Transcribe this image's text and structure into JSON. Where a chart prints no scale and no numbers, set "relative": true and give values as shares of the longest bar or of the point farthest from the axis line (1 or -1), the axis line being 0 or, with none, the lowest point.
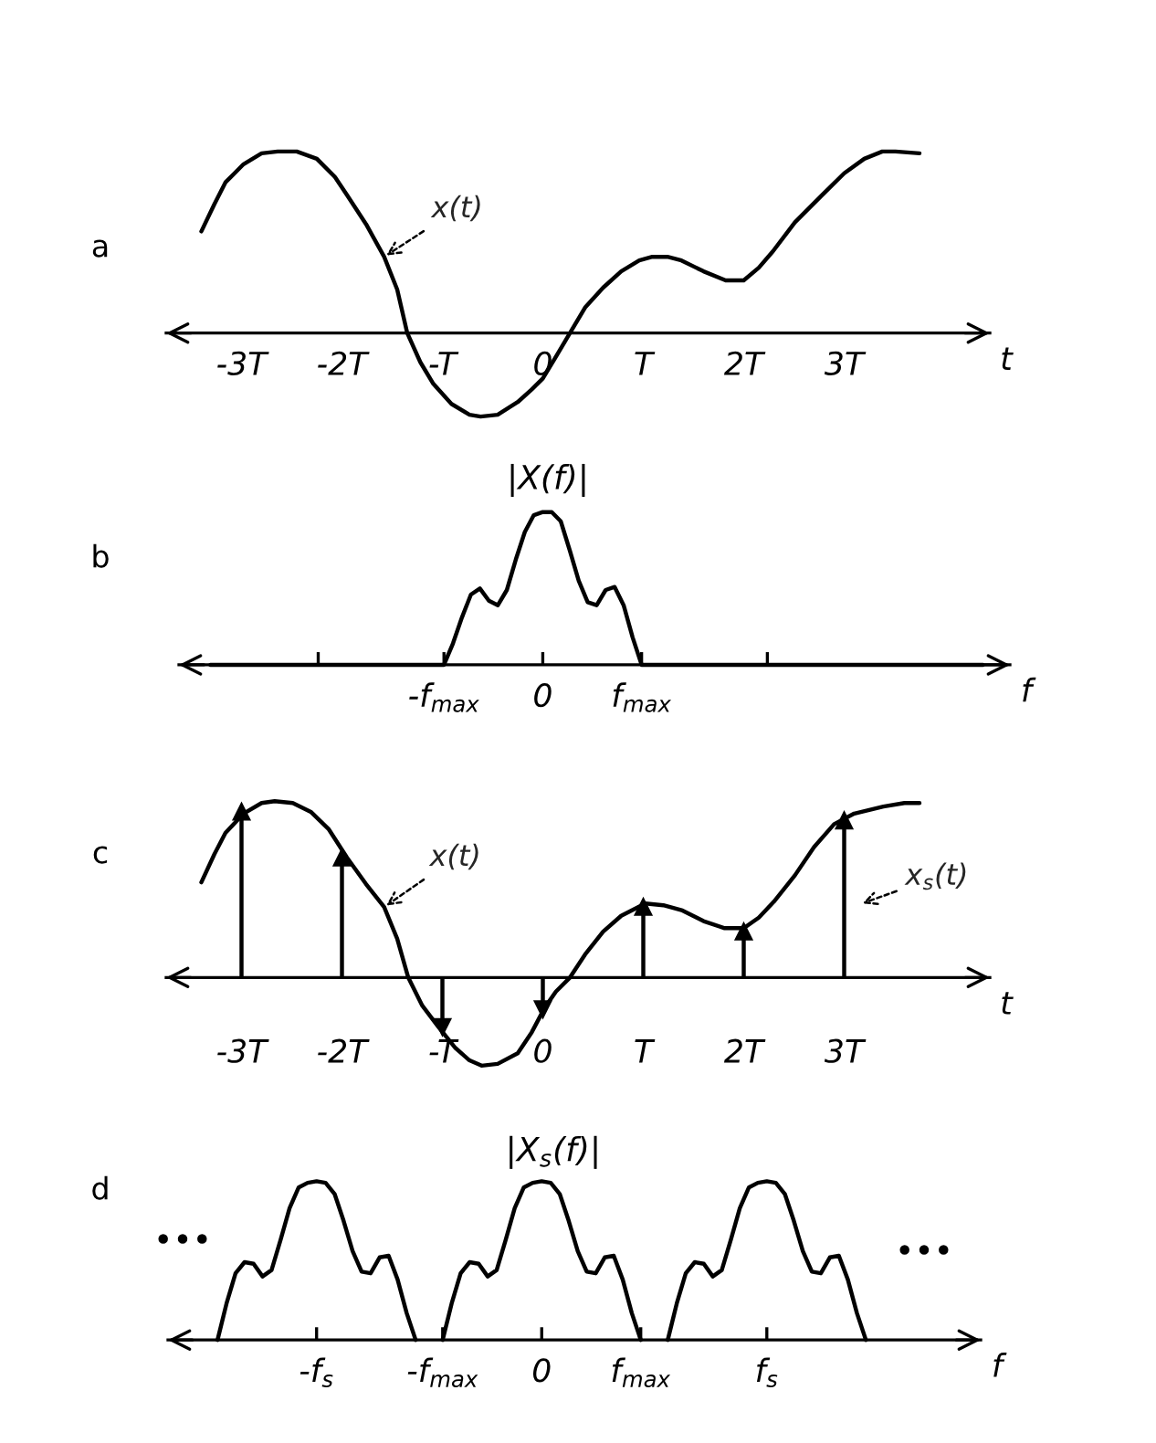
{
  "chart_data": [
    {
      "type": "line",
      "title": "a",
      "xlabel": "t",
      "relative": true,
      "xlim": [
        -3.75,
        4.45
      ],
      "xticks": [
        {
          "value": -3,
          "label": "-3T"
        },
        {
          "value": -2,
          "label": "-2T"
        },
        {
          "value": -1,
          "label": "-T"
        },
        0,
        {
          "value": 1,
          "label": "T"
        },
        {
          "value": 2,
          "label": "2T"
        },
        {
          "value": 3,
          "label": "3T"
        }
      ],
      "series": [
        {
          "color": "#000000",
          "x": [
            -3.4,
            -3.27,
            -3.16,
            -2.98,
            -2.8,
            -2.64,
            -2.45,
            -2.25,
            -2.07,
            -1.95,
            -1.76,
            -1.58,
            -1.45,
            -1.35,
            -1.22,
            -1.09,
            -0.91,
            -0.73,
            -0.62,
            -0.45,
            -0.25,
            -0.11,
            0.0,
            0.13,
            0.27,
            0.42,
            0.6,
            0.78,
            0.96,
            1.09,
            1.24,
            1.38,
            1.6,
            1.82,
            2.0,
            2.15,
            2.29,
            2.51,
            2.78,
            3.0,
            3.2,
            3.38,
            3.51,
            3.75
          ],
          "values": [
            0.56,
            0.71,
            0.83,
            0.93,
            0.99,
            1.0,
            1.0,
            0.96,
            0.86,
            0.76,
            0.6,
            0.42,
            0.24,
            0.0,
            -0.16,
            -0.28,
            -0.39,
            -0.45,
            -0.46,
            -0.45,
            -0.38,
            -0.31,
            -0.25,
            -0.13,
            0.0,
            0.14,
            0.25,
            0.34,
            0.4,
            0.42,
            0.42,
            0.4,
            0.34,
            0.29,
            0.29,
            0.36,
            0.45,
            0.61,
            0.76,
            0.88,
            0.96,
            1.0,
            1.0,
            0.99
          ]
        }
      ],
      "annotations": [
        {
          "text": "x(t)",
          "x": -1.58,
          "y": 0.42
        }
      ]
    },
    {
      "type": "line",
      "title": "b",
      "ylabel": "|X(f)|",
      "xlabel": "f",
      "relative": true,
      "categories": [
        null,
        null,
        null,
        null,
        null,
        null,
        null,
        null,
        null,
        null,
        null,
        null,
        null,
        null,
        null,
        null,
        null,
        null,
        null,
        null,
        null,
        null,
        null,
        null,
        null,
        null,
        "-f$_{max}$",
        null,
        null,
        null,
        null,
        null,
        null,
        null,
        null,
        null,
        null,
        "0",
        null,
        null,
        null,
        null,
        null,
        null,
        null,
        null,
        null,
        null,
        "f$_{max}$",
        null,
        null,
        null,
        null,
        null,
        null,
        null,
        null,
        null,
        null,
        null,
        null,
        null,
        null,
        null,
        null,
        null,
        null,
        null,
        null,
        null,
        null,
        null,
        null,
        null,
        null,
        null,
        null,
        null,
        null,
        null,
        null,
        null,
        null,
        null,
        null,
        null,
        null
      ],
      "series": [
        {
          "color": "#000000",
          "values": [
            0,
            0,
            0,
            0,
            0,
            0,
            0,
            0,
            0,
            0,
            0,
            0,
            0,
            0,
            0,
            0,
            0,
            0,
            0,
            0,
            0,
            0,
            0,
            0,
            0,
            0,
            0,
            0.14,
            0.31,
            0.46,
            0.5,
            0.42,
            0.39,
            0.49,
            0.69,
            0.87,
            0.98,
            1.0,
            1.0,
            0.94,
            0.75,
            0.55,
            0.41,
            0.39,
            0.49,
            0.51,
            0.39,
            0.18,
            0,
            0,
            0,
            0,
            0,
            0,
            0,
            0,
            0,
            0,
            0,
            0,
            0,
            0,
            0,
            0,
            0,
            0,
            0,
            0,
            0,
            0,
            0,
            0,
            0,
            0,
            0,
            0,
            0,
            0,
            0,
            0,
            0,
            0,
            0,
            0,
            0,
            0,
            0
          ]
        }
      ]
    },
    {
      "type": "line",
      "title": "c",
      "xlabel": "t",
      "relative": true,
      "xlim": [
        -3.75,
        4.45
      ],
      "xticks": [
        {
          "value": -3,
          "label": "-3T"
        },
        {
          "value": -2,
          "label": "-2T"
        },
        {
          "value": -1,
          "label": "-T"
        },
        0,
        {
          "value": 1,
          "label": "T"
        },
        {
          "value": 2,
          "label": "2T"
        },
        {
          "value": 3,
          "label": "3T"
        }
      ],
      "series": [
        {
          "color": "#000000",
          "x": [
            -3.4,
            -3.27,
            -3.16,
            -2.98,
            -2.8,
            -2.67,
            -2.49,
            -2.31,
            -2.13,
            -1.95,
            -1.76,
            -1.58,
            -1.45,
            -1.34,
            -1.2,
            -1.04,
            -0.87,
            -0.73,
            -0.61,
            -0.45,
            -0.25,
            -0.11,
            0.02,
            0.13,
            0.27,
            0.42,
            0.6,
            0.78,
            1.02,
            1.2,
            1.39,
            1.6,
            1.81,
            2.0,
            2.15,
            2.3,
            2.51,
            2.7,
            2.9,
            3.1,
            3.39,
            3.6,
            3.75
          ],
          "values": [
            0.54,
            0.7,
            0.82,
            0.93,
            0.99,
            1.0,
            0.99,
            0.94,
            0.84,
            0.68,
            0.53,
            0.4,
            0.22,
            0.0,
            -0.16,
            -0.28,
            -0.4,
            -0.47,
            -0.5,
            -0.49,
            -0.43,
            -0.31,
            -0.17,
            -0.08,
            0.0,
            0.13,
            0.26,
            0.35,
            0.42,
            0.41,
            0.38,
            0.32,
            0.28,
            0.28,
            0.34,
            0.43,
            0.58,
            0.74,
            0.87,
            0.93,
            0.97,
            0.99,
            0.99
          ]
        },
        {
          "type": "lollipop",
          "marker": "triangle",
          "color": "#000000",
          "x": [
            -3,
            -2,
            -1,
            0,
            1,
            2,
            3
          ],
          "values": [
            0.94,
            0.68,
            -0.28,
            -0.18,
            0.4,
            0.26,
            0.89
          ]
        }
      ],
      "annotations": [
        {
          "text": "x(t)",
          "x": -1.58,
          "y": 0.4
        },
        "x$_{s}$(t)"
      ]
    },
    {
      "type": "line",
      "title": "d",
      "ylabel": "|X$_{s}$(f)|",
      "xlabel": "f",
      "relative": true,
      "categories": [
        null,
        null,
        null,
        null,
        null,
        null,
        null,
        null,
        null,
        null,
        null,
        "-f$_{s}$",
        null,
        null,
        null,
        null,
        null,
        null,
        null,
        null,
        null,
        null,
        null,
        null,
        null,
        "-f$_{max}$",
        null,
        null,
        null,
        null,
        null,
        null,
        null,
        null,
        null,
        null,
        "0",
        null,
        null,
        null,
        null,
        null,
        null,
        null,
        null,
        null,
        null,
        "f$_{max}$",
        null,
        null,
        null,
        null,
        null,
        null,
        null,
        null,
        null,
        null,
        null,
        null,
        null,
        "f$_{s}$",
        null,
        null,
        null,
        null,
        null,
        null,
        null,
        null,
        null,
        null,
        null
      ],
      "series": [
        {
          "color": "#000000",
          "values": [
            0,
            0.23,
            0.42,
            0.49,
            0.48,
            0.4,
            0.44,
            0.63,
            0.83,
            0.96,
            0.99,
            1.0,
            0.99,
            0.92,
            0.75,
            0.56,
            0.43,
            0.42,
            0.52,
            0.53,
            0.38,
            0.17,
            0,
            null,
            null,
            0,
            0.23,
            0.42,
            0.49,
            0.48,
            0.4,
            0.44,
            0.63,
            0.83,
            0.96,
            0.99,
            1.0,
            0.99,
            0.92,
            0.75,
            0.56,
            0.43,
            0.42,
            0.52,
            0.53,
            0.38,
            0.17,
            0,
            null,
            null,
            0,
            0.23,
            0.42,
            0.49,
            0.48,
            0.4,
            0.44,
            0.63,
            0.83,
            0.96,
            0.99,
            1.0,
            0.99,
            0.92,
            0.75,
            0.56,
            0.43,
            0.42,
            0.52,
            0.53,
            0.38,
            0.17,
            0
          ]
        }
      ],
      "annotations": [
        "•••",
        "•••"
      ]
    }
  ]
}
